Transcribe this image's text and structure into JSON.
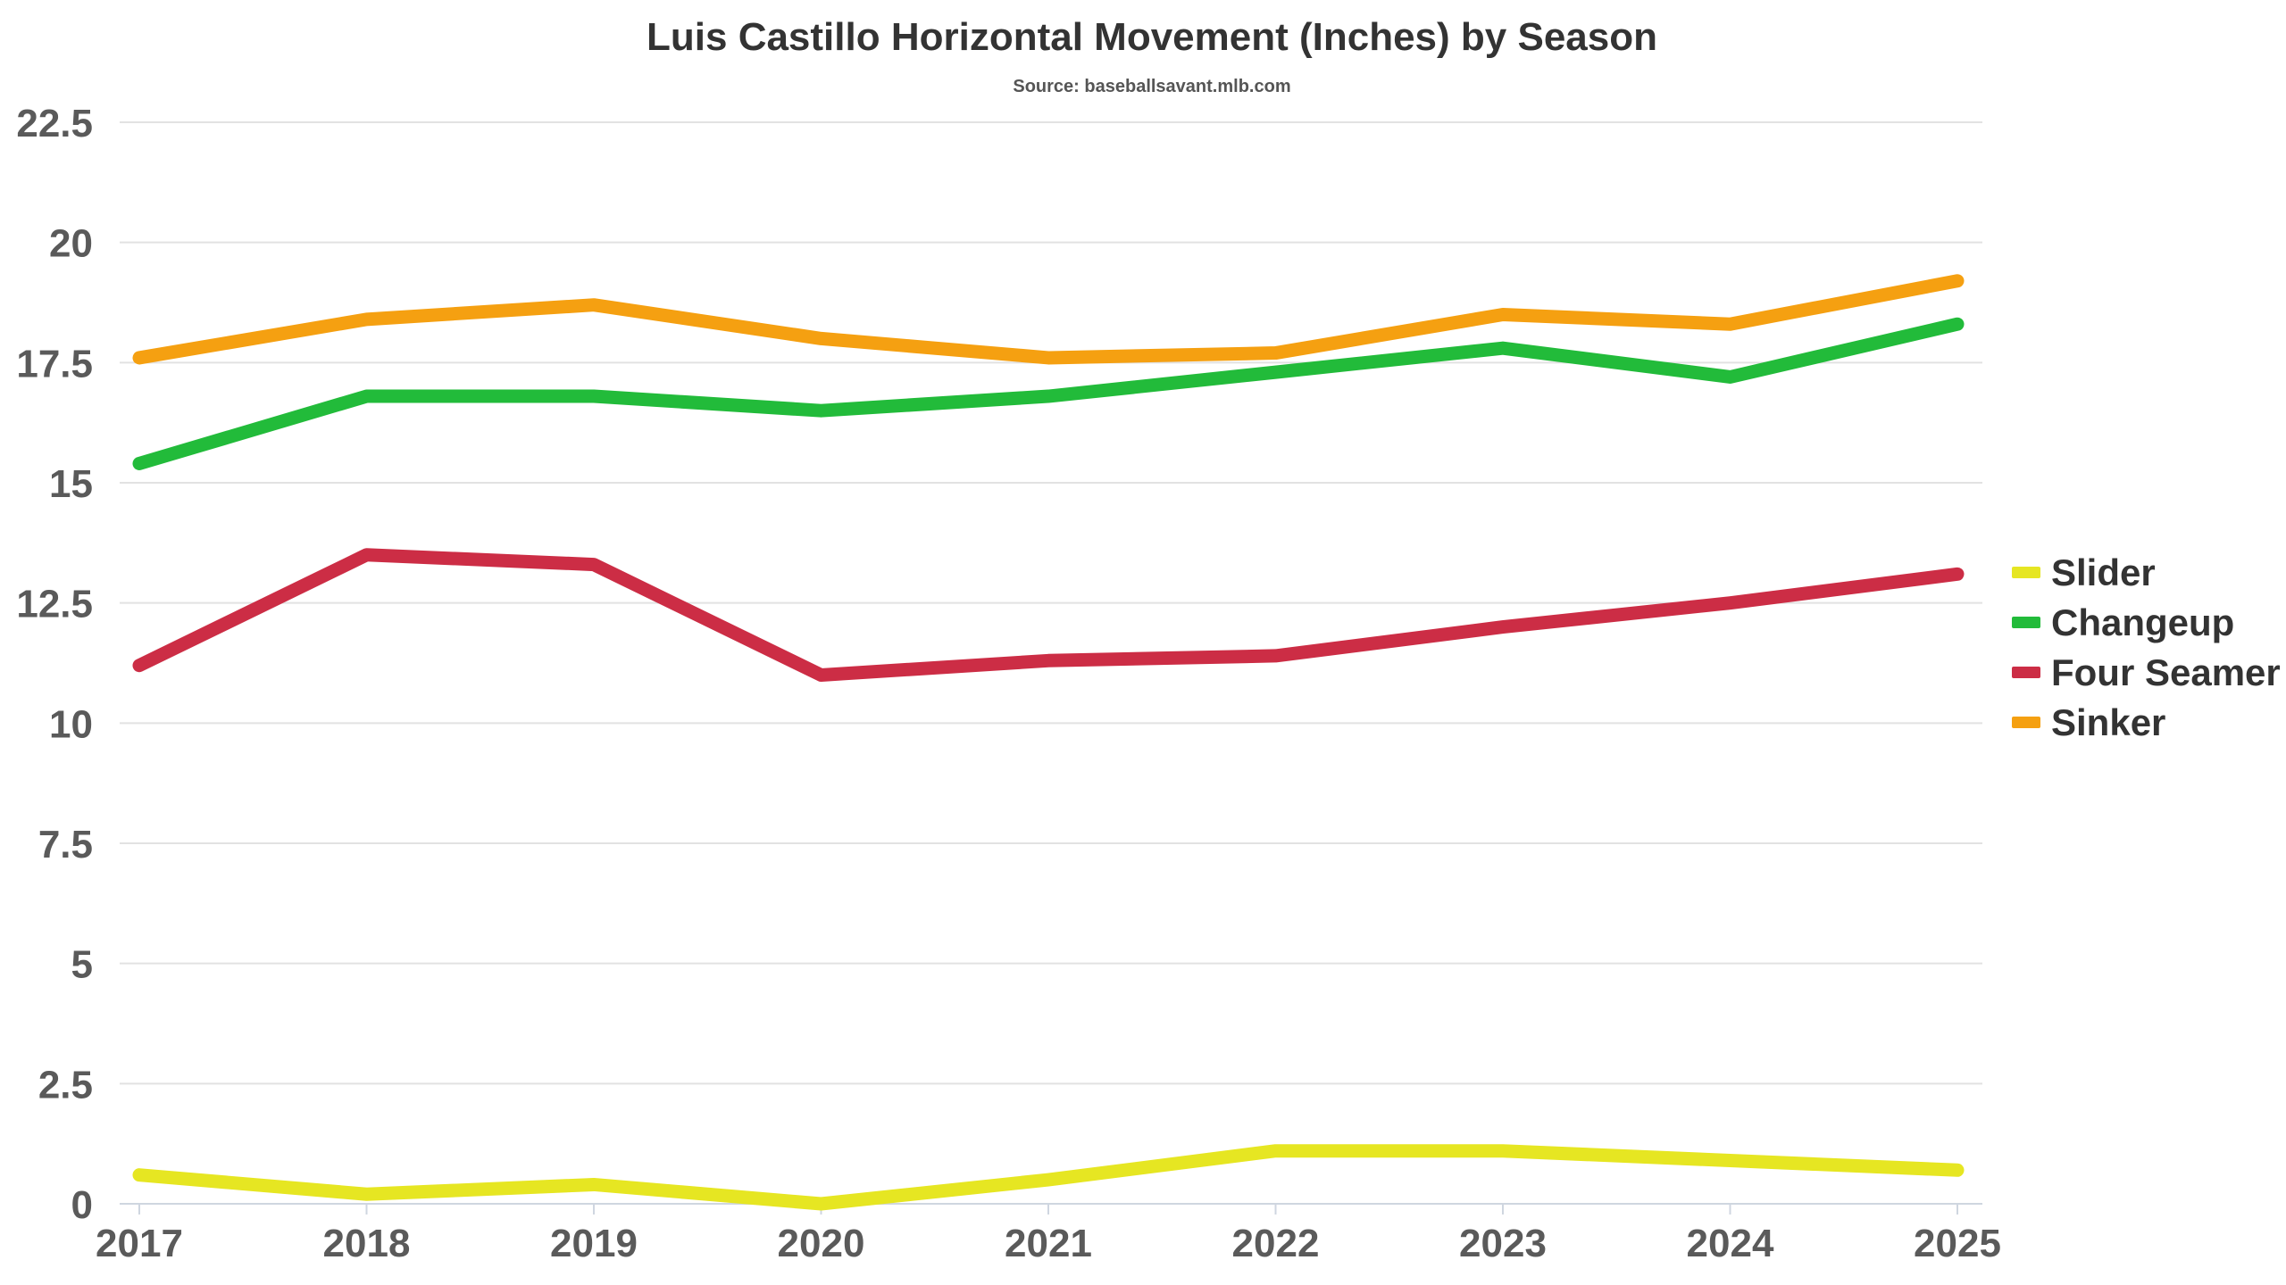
{
  "chart_data": {
    "type": "line",
    "title": "Luis Castillo Horizontal Movement (Inches) by Season",
    "subtitle": "Source: baseballsavant.mlb.com",
    "xlabel": "",
    "ylabel": "",
    "x": [
      "2017",
      "2018",
      "2019",
      "2020",
      "2021",
      "2022",
      "2023",
      "2024",
      "2025"
    ],
    "ylim": [
      0,
      22.5
    ],
    "y_ticks": [
      "0",
      "2.5",
      "5",
      "7.5",
      "10",
      "12.5",
      "15",
      "17.5",
      "20",
      "22.5"
    ],
    "grid": true,
    "legend_position": "right",
    "series": [
      {
        "name": "Slider",
        "color": "#e6e622",
        "values": [
          0.6,
          0.2,
          0.4,
          0.0,
          0.5,
          1.1,
          1.1,
          0.9,
          0.7
        ]
      },
      {
        "name": "Changeup",
        "color": "#22bb3a",
        "values": [
          15.4,
          16.8,
          16.8,
          16.5,
          16.8,
          17.3,
          17.8,
          17.2,
          18.3
        ]
      },
      {
        "name": "Four Seamer",
        "color": "#cc2d45",
        "values": [
          11.2,
          13.5,
          13.3,
          11.0,
          11.3,
          11.4,
          12.0,
          12.5,
          13.1
        ]
      },
      {
        "name": "Sinker",
        "color": "#f5a011",
        "values": [
          17.6,
          18.4,
          18.7,
          18.0,
          17.6,
          17.7,
          18.5,
          18.3,
          19.2
        ]
      }
    ]
  }
}
